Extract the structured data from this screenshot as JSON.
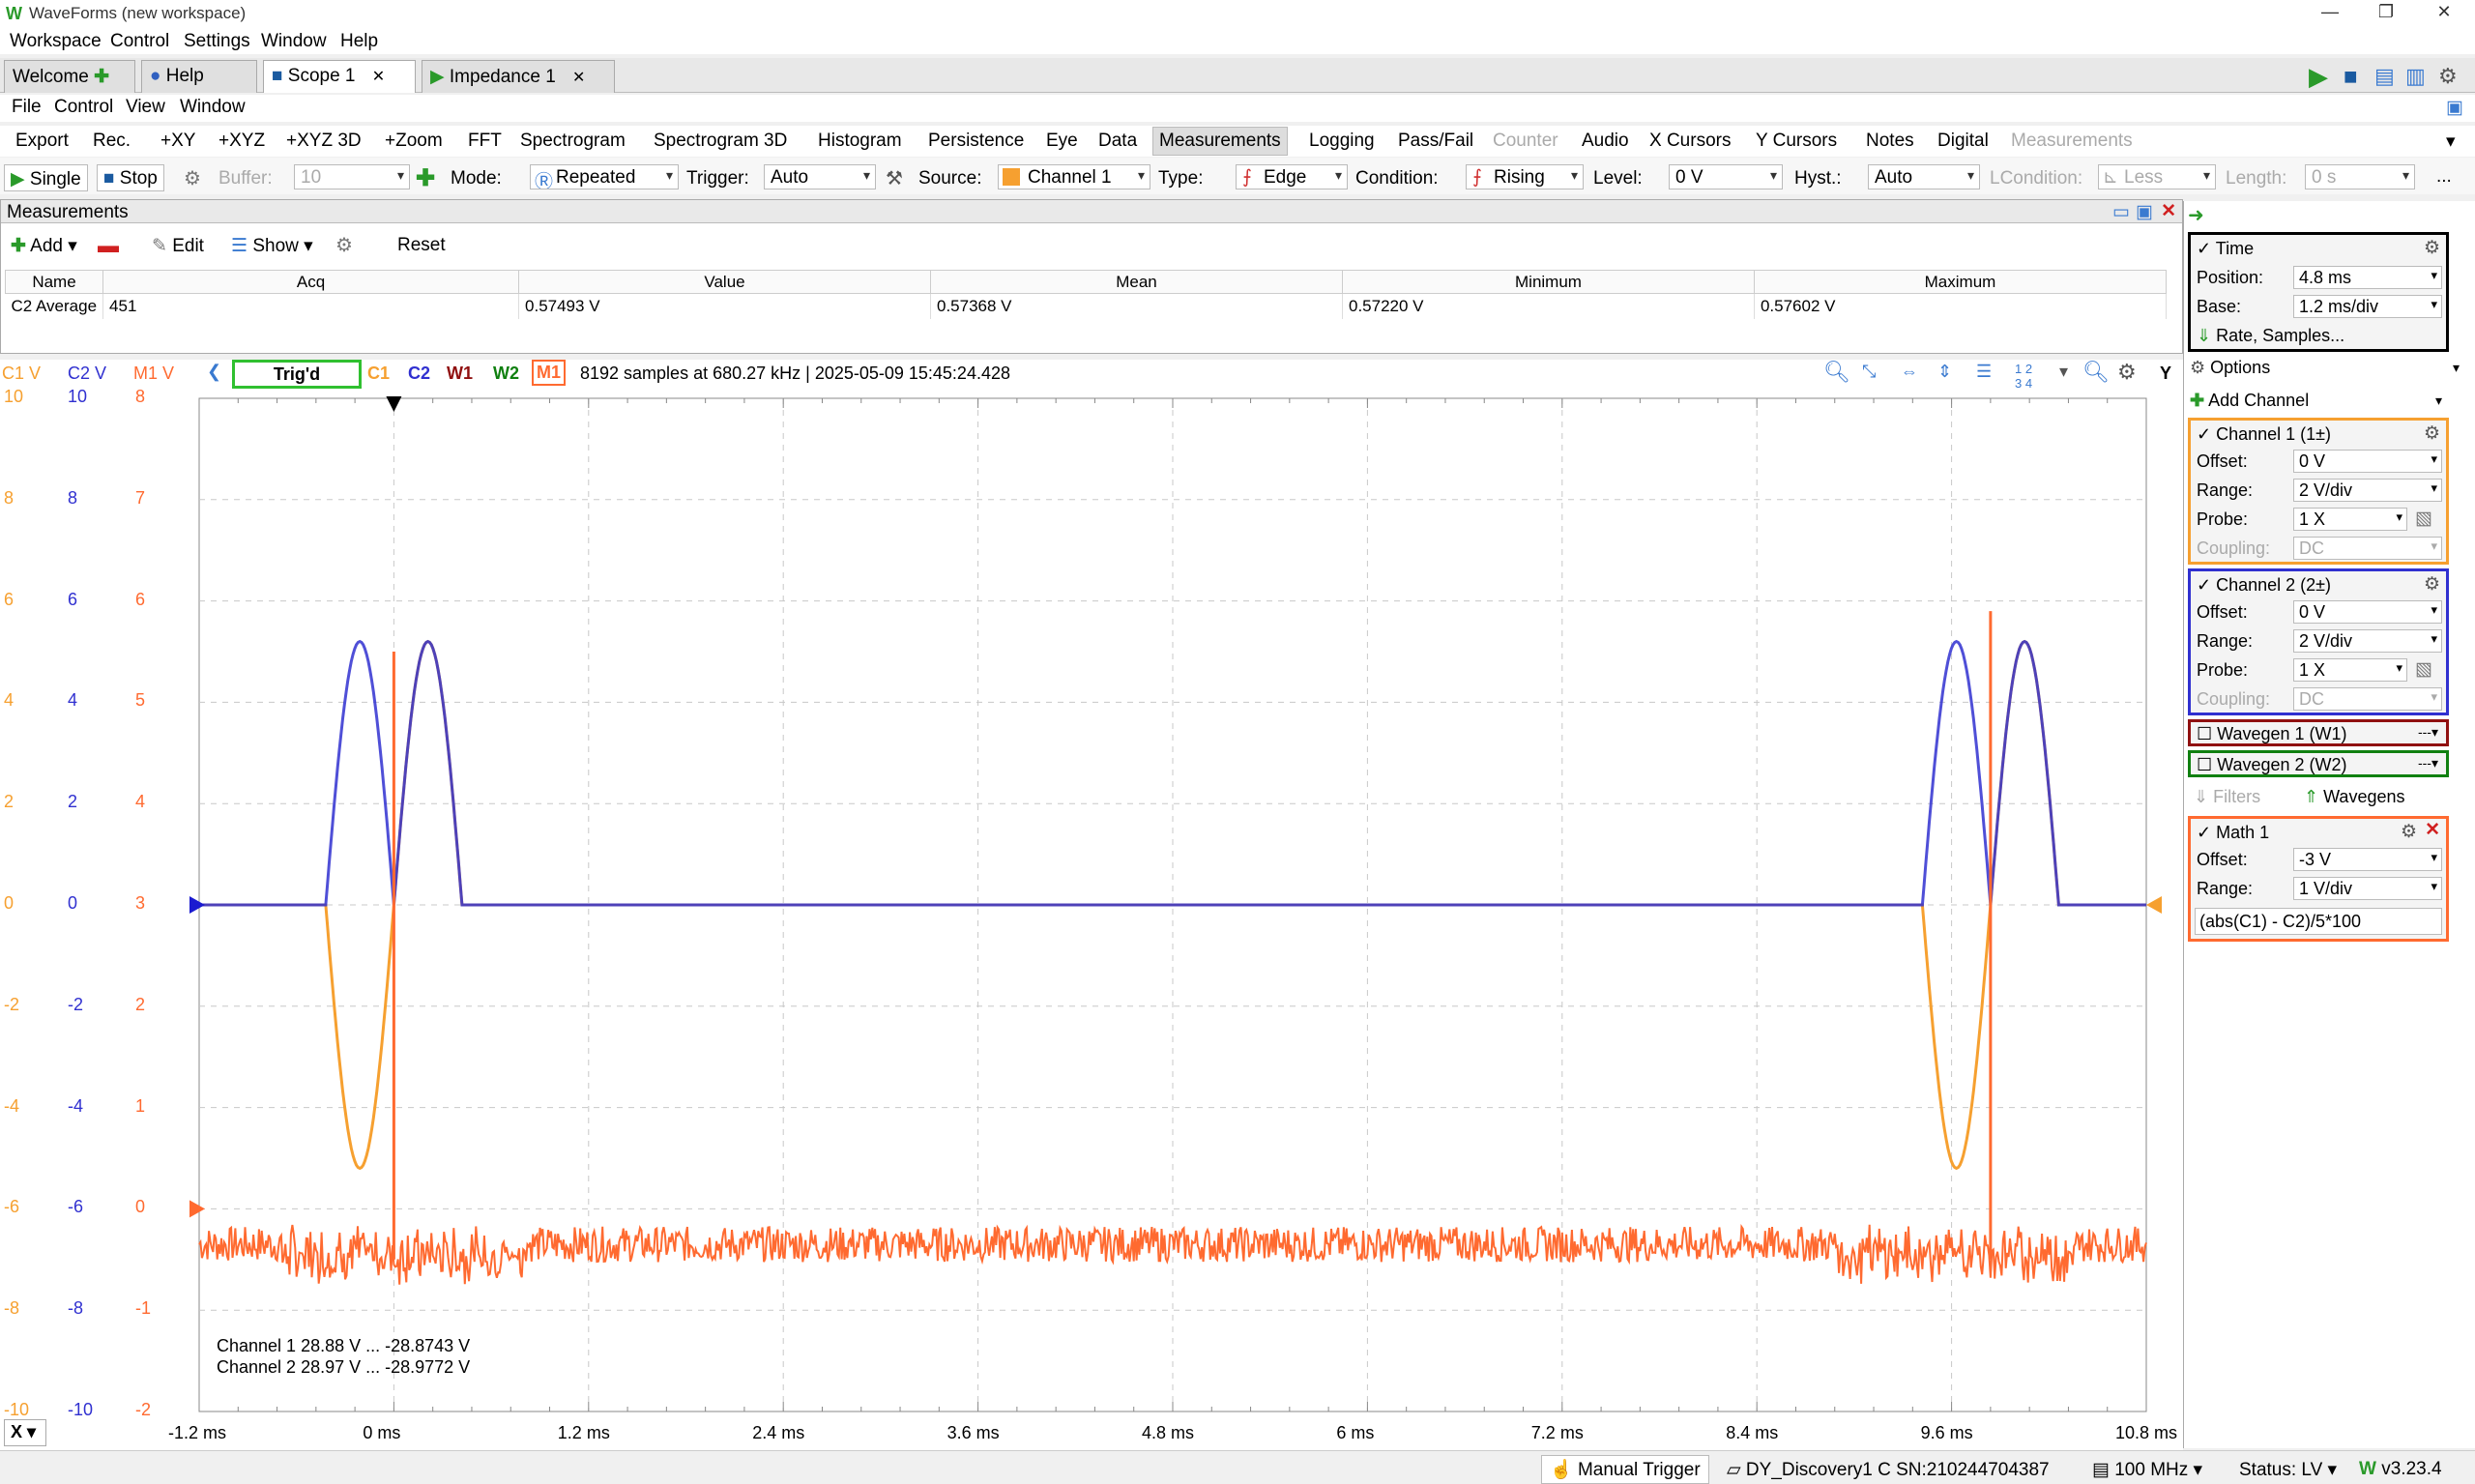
{
  "window": {
    "title": "WaveForms (new workspace)"
  },
  "menu": [
    "Workspace",
    "Control",
    "Settings",
    "Window",
    "Help"
  ],
  "tabs": [
    {
      "label": "Welcome",
      "closable": false
    },
    {
      "label": "Help",
      "closable": false
    },
    {
      "label": "Scope 1",
      "closable": true
    },
    {
      "label": "Impedance 1",
      "closable": true
    }
  ],
  "submenu": [
    "File",
    "Control",
    "View",
    "Window"
  ],
  "toolbar1": [
    "Export",
    "Rec.",
    "+XY",
    "+XYZ",
    "+XYZ 3D",
    "+Zoom",
    "FFT",
    "Spectrogram",
    "Spectrogram 3D",
    "Histogram",
    "Persistence",
    "Eye",
    "Data",
    "Measurements",
    "Logging",
    "Pass/Fail",
    "Counter",
    "Audio",
    "X Cursors",
    "Y Cursors",
    "Notes",
    "Digital",
    "Measurements"
  ],
  "toolbar2": {
    "single": "Single",
    "stop": "Stop",
    "buffer_label": "Buffer:",
    "buffer_value": "10",
    "mode_label": "Mode:",
    "mode_value": "Repeated",
    "trigger_label": "Trigger:",
    "trigger_value": "Auto",
    "source_label": "Source:",
    "source_value": "Channel 1",
    "type_label": "Type:",
    "type_value": "Edge",
    "condition_label": "Condition:",
    "condition_value": "Rising",
    "level_label": "Level:",
    "level_value": "0 V",
    "hyst_label": "Hyst.:",
    "hyst_value": "Auto",
    "lcondition_label": "LCondition:",
    "lcondition_value": "Less",
    "length_label": "Length:",
    "length_value": "0 s",
    "more": "..."
  },
  "measurements": {
    "title": "Measurements",
    "add": "Add",
    "edit": "Edit",
    "show": "Show",
    "reset": "Reset",
    "columns": [
      "Name",
      "Acq",
      "Value",
      "Mean",
      "Minimum",
      "Maximum"
    ],
    "rows": [
      {
        "name": "C2  Average",
        "acq": "451",
        "value": "0.57493 V",
        "mean": "0.57368 V",
        "minimum": "0.57220 V",
        "maximum": "0.57602 V"
      }
    ]
  },
  "plot": {
    "status": "Trig'd",
    "channels": [
      "C1",
      "C2",
      "W1",
      "W2",
      "M1"
    ],
    "info": "8192 samples at 680.27 kHz  | 2025-05-09 15:45:24.428",
    "axis_headers": {
      "c1": "C1 V",
      "c2": "C2 V",
      "m1": "M1 V"
    },
    "c1_ticks": [
      "10",
      "8",
      "6",
      "4",
      "2",
      "0",
      "-2",
      "-4",
      "-6",
      "-8",
      "-10"
    ],
    "c2_ticks": [
      "10",
      "8",
      "6",
      "4",
      "2",
      "0",
      "-2",
      "-4",
      "-6",
      "-8",
      "-10"
    ],
    "m1_ticks": [
      "8",
      "7",
      "6",
      "5",
      "4",
      "3",
      "2",
      "1",
      "0",
      "-1",
      "-2"
    ],
    "x_ticks": [
      "-1.2 ms",
      "0 ms",
      "1.2 ms",
      "2.4 ms",
      "3.6 ms",
      "4.8 ms",
      "6 ms",
      "7.2 ms",
      "8.4 ms",
      "9.6 ms",
      "10.8 ms"
    ],
    "x_label": "X",
    "y_label": "Y",
    "range_lines": [
      "Channel 1  28.88 V ... -28.8743 V",
      "Channel 2  28.97 V ... -28.9772 V"
    ],
    "colors": {
      "c1": "#f6a030",
      "c2": "#3030d0",
      "m1": "#ff6a30",
      "trig": "#30c030"
    }
  },
  "right_panel": {
    "time": {
      "title": "Time",
      "position_label": "Position:",
      "position": "4.8 ms",
      "base_label": "Base:",
      "base": "1.2 ms/div",
      "rate": "Rate, Samples..."
    },
    "options": "Options",
    "add_channel": "Add Channel",
    "ch1": {
      "title": "Channel 1 (1±)",
      "offset_label": "Offset:",
      "offset": "0 V",
      "range_label": "Range:",
      "range": "2 V/div",
      "probe_label": "Probe:",
      "probe": "1 X",
      "coupling_label": "Coupling:",
      "coupling": "DC"
    },
    "ch2": {
      "title": "Channel 2 (2±)",
      "offset_label": "Offset:",
      "offset": "0 V",
      "range_label": "Range:",
      "range": "2 V/div",
      "probe_label": "Probe:",
      "probe": "1 X",
      "coupling_label": "Coupling:",
      "coupling": "DC"
    },
    "wavegen1": "Wavegen 1 (W1)",
    "wavegen2": "Wavegen 2 (W2)",
    "filters": "Filters",
    "wavegens": "Wavegens",
    "math1": {
      "title": "Math 1",
      "offset_label": "Offset:",
      "offset": "-3 V",
      "range_label": "Range:",
      "range": "1 V/div",
      "expr": "(abs(C1) - C2)/5*100"
    }
  },
  "status": {
    "manual_trigger": "Manual Trigger",
    "device": "DY_Discovery1 C SN:210244704387",
    "freq": "100 MHz",
    "status": "Status: LV",
    "version": "v3.23.4"
  }
}
